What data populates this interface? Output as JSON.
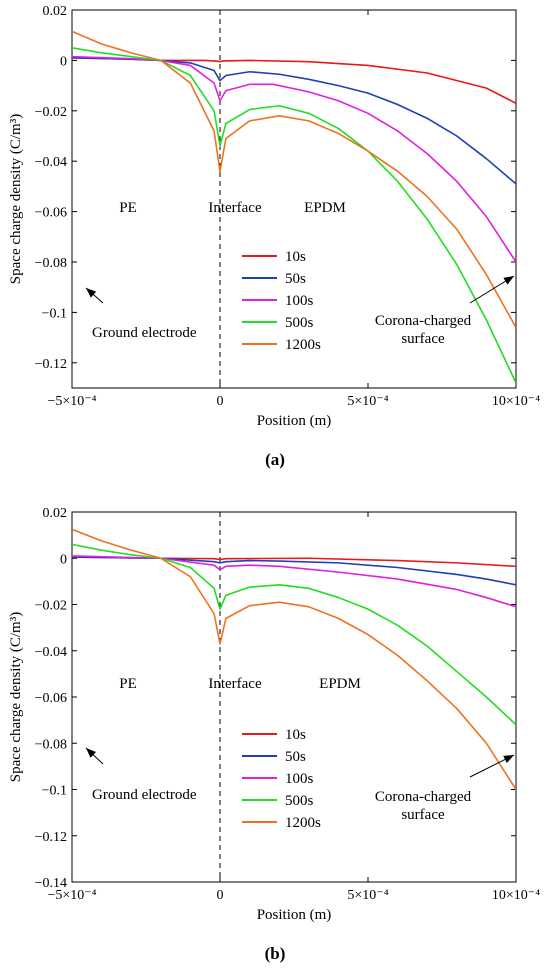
{
  "captions": [
    "(a)",
    "(b)"
  ],
  "chart_data": [
    {
      "type": "line",
      "xlabel": "Position (m)",
      "ylabel": "Space charge density (C/m³)",
      "xlim": [
        -0.0005,
        0.001
      ],
      "ylim": [
        -0.13,
        0.02
      ],
      "xticks": [
        -0.0005,
        0,
        0.0005,
        0.001
      ],
      "xtick_labels": [
        "−5×10⁻⁴",
        "0",
        "5×10⁻⁴",
        "10×10⁻⁴"
      ],
      "yticks": [
        0.02,
        0,
        -0.02,
        -0.04,
        -0.06,
        -0.08,
        -0.1,
        -0.12
      ],
      "ytick_labels": [
        "0.02",
        "0",
        "−0.02",
        "−0.04",
        "−0.06",
        "−0.08",
        "−0.1",
        "−0.12"
      ],
      "grid": false,
      "legend_position": "center",
      "annotations": {
        "left_region": "PE",
        "interface": "Interface",
        "right_region": "EPDM",
        "ground": "Ground electrode",
        "corona_line1": "Corona-charged",
        "corona_line2": "surface"
      },
      "series": [
        {
          "name": "10s",
          "color": "#e41a1c",
          "x": [
            -0.0005,
            -0.0003,
            -0.0002,
            -5e-05,
            -1e-05,
            0,
            1e-05,
            0.0001,
            0.0003,
            0.0005,
            0.0007,
            0.0009,
            0.001
          ],
          "y": [
            0.001,
            0.0005,
            0.0,
            0.0,
            -0.0003,
            -0.0005,
            -0.0002,
            0,
            -0.0005,
            -0.002,
            -0.005,
            -0.011,
            -0.017
          ]
        },
        {
          "name": "50s",
          "color": "#1f3fb5",
          "x": [
            -0.0005,
            -0.0003,
            -0.0002,
            -0.0001,
            -2e-05,
            0,
            2e-05,
            0.0001,
            0.0002,
            0.0003,
            0.0004,
            0.0005,
            0.0006,
            0.0007,
            0.0008,
            0.0009,
            0.001
          ],
          "y": [
            0.001,
            0.0005,
            0,
            -0.001,
            -0.004,
            -0.008,
            -0.006,
            -0.0045,
            -0.0055,
            -0.0075,
            -0.01,
            -0.013,
            -0.0175,
            -0.023,
            -0.03,
            -0.039,
            -0.049
          ]
        },
        {
          "name": "100s",
          "color": "#e020e0",
          "x": [
            -0.0005,
            -0.0003,
            -0.0002,
            -0.0001,
            -2e-05,
            0,
            2e-05,
            0.0001,
            0.00018,
            0.0003,
            0.0004,
            0.0005,
            0.0006,
            0.0007,
            0.0008,
            0.0009,
            0.001
          ],
          "y": [
            0.0015,
            0.0007,
            0,
            -0.002,
            -0.009,
            -0.016,
            -0.012,
            -0.0095,
            -0.0095,
            -0.0125,
            -0.016,
            -0.021,
            -0.028,
            -0.037,
            -0.048,
            -0.062,
            -0.08
          ]
        },
        {
          "name": "500s",
          "color": "#22dd22",
          "x": [
            -0.0005,
            -0.0004,
            -0.0003,
            -0.0002,
            -0.0001,
            -2e-05,
            0,
            2e-05,
            0.0001,
            0.0002,
            0.0003,
            0.0004,
            0.0005,
            0.0006,
            0.0007,
            0.0008,
            0.0009,
            0.001
          ],
          "y": [
            0.005,
            0.003,
            0.0015,
            0,
            -0.006,
            -0.02,
            -0.034,
            -0.025,
            -0.0195,
            -0.018,
            -0.021,
            -0.027,
            -0.036,
            -0.048,
            -0.063,
            -0.081,
            -0.103,
            -0.128
          ]
        },
        {
          "name": "1200s",
          "color": "#f07020",
          "x": [
            -0.0005,
            -0.0004,
            -0.0003,
            -0.0002,
            -0.0001,
            -2e-05,
            0,
            2e-05,
            0.0001,
            0.0002,
            0.0003,
            0.0004,
            0.0005,
            0.0006,
            0.0007,
            0.0008,
            0.0009,
            0.001
          ],
          "y": [
            0.0115,
            0.0065,
            0.003,
            0,
            -0.009,
            -0.028,
            -0.044,
            -0.031,
            -0.024,
            -0.022,
            -0.024,
            -0.029,
            -0.036,
            -0.044,
            -0.054,
            -0.067,
            -0.085,
            -0.106
          ]
        }
      ]
    },
    {
      "type": "line",
      "xlabel": "Position (m)",
      "ylabel": "Space charge density (C/m³)",
      "xlim": [
        -0.0005,
        0.001
      ],
      "ylim": [
        -0.14,
        0.02
      ],
      "xticks": [
        -0.0005,
        0,
        0.0005,
        0.001
      ],
      "xtick_labels": [
        "−5×10⁻⁴",
        "0",
        "5×10⁻⁴",
        "10×10⁻⁴"
      ],
      "yticks": [
        0.02,
        0,
        -0.02,
        -0.04,
        -0.06,
        -0.08,
        -0.1,
        -0.12,
        -0.14
      ],
      "ytick_labels": [
        "0.02",
        "0",
        "−0.02",
        "−0.04",
        "−0.06",
        "−0.08",
        "−0.1",
        "−0.12",
        "−0.14"
      ],
      "grid": false,
      "legend_position": "center",
      "annotations": {
        "left_region": "PE",
        "interface": "Interface",
        "right_region": "EPDM",
        "ground": "Ground electrode",
        "corona_line1": "Corona-charged",
        "corona_line2": "surface"
      },
      "series": [
        {
          "name": "10s",
          "color": "#e41a1c",
          "x": [
            -0.0005,
            -0.0002,
            -2e-05,
            0,
            2e-05,
            0.0003,
            0.0006,
            0.0008,
            0.001
          ],
          "y": [
            0.0005,
            0,
            -0.0002,
            -0.0005,
            -0.0002,
            0,
            -0.001,
            -0.002,
            -0.0035
          ]
        },
        {
          "name": "50s",
          "color": "#1f3fb5",
          "x": [
            -0.0005,
            -0.0002,
            -2e-05,
            0,
            2e-05,
            0.0001,
            0.0002,
            0.0004,
            0.0006,
            0.0008,
            0.0009,
            0.001
          ],
          "y": [
            0.0005,
            0,
            -0.0015,
            -0.002,
            -0.0015,
            -0.001,
            -0.0012,
            -0.002,
            -0.004,
            -0.007,
            -0.009,
            -0.0115
          ]
        },
        {
          "name": "100s",
          "color": "#e020e0",
          "x": [
            -0.0005,
            -0.0002,
            -2e-05,
            0,
            2e-05,
            0.0001,
            0.0002,
            0.0004,
            0.0006,
            0.0008,
            0.0009,
            0.001
          ],
          "y": [
            0.001,
            0,
            -0.003,
            -0.005,
            -0.0035,
            -0.003,
            -0.0035,
            -0.006,
            -0.009,
            -0.0135,
            -0.017,
            -0.021
          ]
        },
        {
          "name": "500s",
          "color": "#22dd22",
          "x": [
            -0.0005,
            -0.0004,
            -0.0003,
            -0.0002,
            -0.0001,
            -2e-05,
            0,
            2e-05,
            0.0001,
            0.0002,
            0.0003,
            0.0004,
            0.0005,
            0.0006,
            0.0007,
            0.0008,
            0.0009,
            0.001
          ],
          "y": [
            0.006,
            0.0035,
            0.0015,
            0,
            -0.004,
            -0.013,
            -0.022,
            -0.016,
            -0.0125,
            -0.0115,
            -0.013,
            -0.017,
            -0.022,
            -0.029,
            -0.038,
            -0.049,
            -0.06,
            -0.072
          ]
        },
        {
          "name": "1200s",
          "color": "#f07020",
          "x": [
            -0.0005,
            -0.0004,
            -0.0003,
            -0.0002,
            -0.0001,
            -2e-05,
            0,
            2e-05,
            0.0001,
            0.0002,
            0.0003,
            0.0004,
            0.0005,
            0.0006,
            0.0007,
            0.0008,
            0.0009,
            0.001
          ],
          "y": [
            0.0125,
            0.0075,
            0.0035,
            0,
            -0.008,
            -0.024,
            -0.037,
            -0.026,
            -0.0205,
            -0.019,
            -0.021,
            -0.026,
            -0.033,
            -0.042,
            -0.053,
            -0.065,
            -0.08,
            -0.1
          ]
        }
      ]
    }
  ]
}
